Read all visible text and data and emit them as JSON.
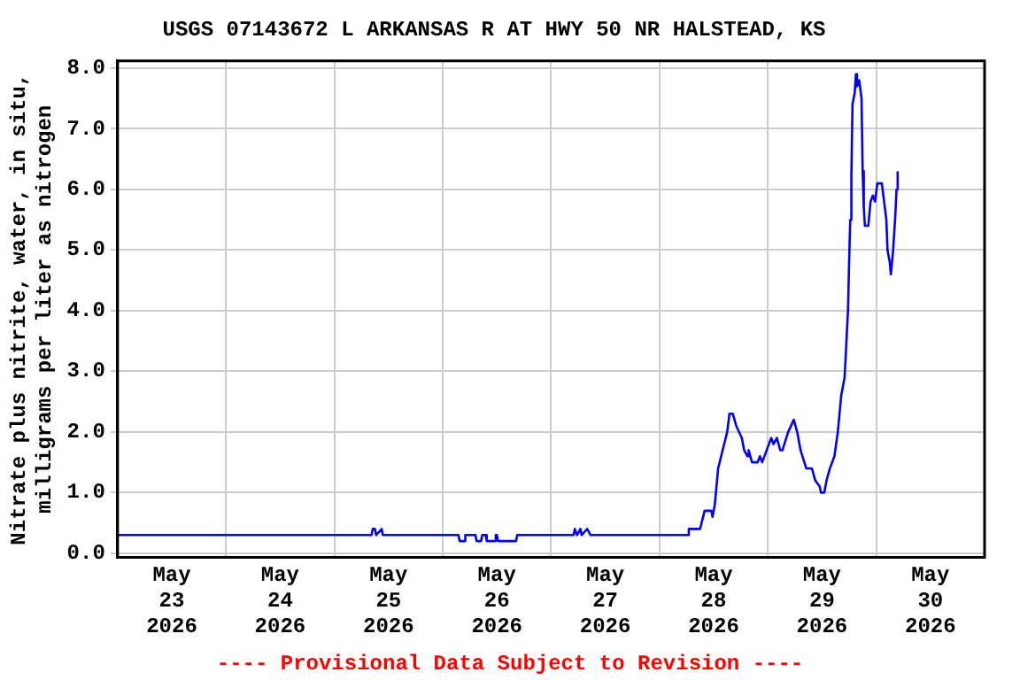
{
  "chart_data": {
    "type": "line",
    "title": "USGS 07143672 L ARKANSAS R AT HWY 50 NR HALSTEAD, KS",
    "ylabel": "Nitrate plus nitrite, water, in situ,\nmilligrams per liter as nitrogen",
    "annotations": [
      "---- Provisional Data Subject to Revision ----"
    ],
    "xlim": [
      "2026-05-23",
      "2026-05-31"
    ],
    "xticks": [
      {
        "value": "2026-05-23T12:00",
        "label": "May\n23\n2026"
      },
      {
        "value": "2026-05-24",
        "label": null
      },
      {
        "value": "2026-05-24T12:00",
        "label": "May\n24\n2026"
      },
      {
        "value": "2026-05-25",
        "label": null
      },
      {
        "value": "2026-05-25T12:00",
        "label": "May\n25\n2026"
      },
      {
        "value": "2026-05-26",
        "label": null
      },
      {
        "value": "2026-05-26T12:00",
        "label": "May\n26\n2026"
      },
      {
        "value": "2026-05-27",
        "label": null
      },
      {
        "value": "2026-05-27T12:00",
        "label": "May\n27\n2026"
      },
      {
        "value": "2026-05-28",
        "label": null
      },
      {
        "value": "2026-05-28T12:00",
        "label": "May\n28\n2026"
      },
      {
        "value": "2026-05-29",
        "label": null
      },
      {
        "value": "2026-05-29T12:00",
        "label": "May\n29\n2026"
      },
      {
        "value": "2026-05-30",
        "label": null
      },
      {
        "value": "2026-05-30T12:00",
        "label": "May\n30\n2026"
      }
    ],
    "ylim": [
      -0.07,
      8.12
    ],
    "yticks": [
      {
        "value": 0,
        "label": "0.0"
      },
      {
        "value": 1,
        "label": "1.0"
      },
      {
        "value": 2,
        "label": "2.0"
      },
      {
        "value": 3,
        "label": "3.0"
      },
      {
        "value": 4,
        "label": "4.0"
      },
      {
        "value": 5,
        "label": "5.0"
      },
      {
        "value": 6,
        "label": "6.0"
      },
      {
        "value": 7,
        "label": "7.0"
      },
      {
        "value": 8,
        "label": "8.0"
      }
    ],
    "grid": true,
    "series": [
      {
        "color": "#0000ff",
        "x": [
          "2026-05-23T00:00",
          "2026-05-25T08:15",
          "2026-05-25T08:30",
          "2026-05-25T09:00",
          "2026-05-25T09:15",
          "2026-05-25T10:30",
          "2026-05-25T10:45",
          "2026-05-26T03:30",
          "2026-05-26T03:45",
          "2026-05-26T04:45",
          "2026-05-26T05:00",
          "2026-05-26T07:15",
          "2026-05-26T07:30",
          "2026-05-26T08:30",
          "2026-05-26T08:45",
          "2026-05-26T09:30",
          "2026-05-26T09:45",
          "2026-05-26T11:30",
          "2026-05-26T11:45",
          "2026-05-26T12:00",
          "2026-05-26T12:15",
          "2026-05-26T16:15",
          "2026-05-26T16:30",
          "2026-05-27T05:00",
          "2026-05-27T05:15",
          "2026-05-27T05:45",
          "2026-05-27T06:30",
          "2026-05-27T06:45",
          "2026-05-27T08:00",
          "2026-05-27T08:45",
          "2026-05-28T06:15",
          "2026-05-28T06:30",
          "2026-05-28T07:45",
          "2026-05-28T09:00",
          "2026-05-28T10:00",
          "2026-05-28T11:30",
          "2026-05-28T11:45",
          "2026-05-28T12:15",
          "2026-05-28T13:00",
          "2026-05-28T14:00",
          "2026-05-28T15:00",
          "2026-05-28T15:30",
          "2026-05-28T16:15",
          "2026-05-28T17:00",
          "2026-05-28T18:15",
          "2026-05-28T18:45",
          "2026-05-28T19:30",
          "2026-05-28T19:45",
          "2026-05-28T20:30",
          "2026-05-28T21:45",
          "2026-05-28T22:15",
          "2026-05-28T22:45",
          "2026-05-28T23:45",
          "2026-05-29T00:45",
          "2026-05-29T01:15",
          "2026-05-29T02:00",
          "2026-05-29T02:45",
          "2026-05-29T03:15",
          "2026-05-29T04:30",
          "2026-05-29T05:45",
          "2026-05-29T06:30",
          "2026-05-29T07:15",
          "2026-05-29T08:30",
          "2026-05-29T09:45",
          "2026-05-29T10:30",
          "2026-05-29T11:30",
          "2026-05-29T11:45",
          "2026-05-29T12:30",
          "2026-05-29T13:00",
          "2026-05-29T13:45",
          "2026-05-29T14:45",
          "2026-05-29T15:30",
          "2026-05-29T16:15",
          "2026-05-29T17:00",
          "2026-05-29T17:45",
          "2026-05-29T18:00",
          "2026-05-29T18:15",
          "2026-05-29T18:30",
          "2026-05-29T18:45",
          "2026-05-29T19:15",
          "2026-05-29T19:30",
          "2026-05-29T19:45",
          "2026-05-29T20:15",
          "2026-05-29T20:45",
          "2026-05-29T21:00",
          "2026-05-29T21:15",
          "2026-05-29T21:30",
          "2026-05-29T22:15",
          "2026-05-29T22:45",
          "2026-05-29T23:15",
          "2026-05-29T23:45",
          "2026-05-30T00:15",
          "2026-05-30T01:15",
          "2026-05-30T01:45",
          "2026-05-30T02:15",
          "2026-05-30T02:30",
          "2026-05-30T03:00",
          "2026-05-30T03:15",
          "2026-05-30T03:45",
          "2026-05-30T04:15",
          "2026-05-30T04:30",
          "2026-05-30T04:45"
        ],
        "values": [
          0.3,
          0.3,
          0.4,
          0.4,
          0.3,
          0.4,
          0.3,
          0.3,
          0.2,
          0.2,
          0.3,
          0.3,
          0.2,
          0.2,
          0.3,
          0.3,
          0.2,
          0.2,
          0.3,
          0.3,
          0.2,
          0.2,
          0.3,
          0.3,
          0.4,
          0.3,
          0.4,
          0.3,
          0.4,
          0.3,
          0.3,
          0.4,
          0.4,
          0.4,
          0.7,
          0.7,
          0.6,
          0.8,
          1.4,
          1.7,
          2.0,
          2.3,
          2.3,
          2.1,
          1.9,
          1.7,
          1.6,
          1.7,
          1.5,
          1.5,
          1.6,
          1.5,
          1.7,
          1.9,
          1.8,
          1.9,
          1.7,
          1.7,
          2.0,
          2.2,
          2.0,
          1.7,
          1.4,
          1.4,
          1.2,
          1.1,
          1.0,
          1.0,
          1.2,
          1.4,
          1.6,
          2.0,
          2.6,
          2.9,
          4.0,
          4.8,
          5.5,
          6.2,
          7.4,
          7.6,
          7.9,
          7.7,
          7.8,
          7.5,
          6.3,
          5.7,
          5.4,
          5.4,
          5.8,
          5.9,
          5.8,
          6.1,
          6.1,
          5.8,
          5.5,
          5.0,
          4.8,
          4.6,
          5.0,
          5.6,
          6.0,
          6.3
        ]
      }
    ]
  }
}
